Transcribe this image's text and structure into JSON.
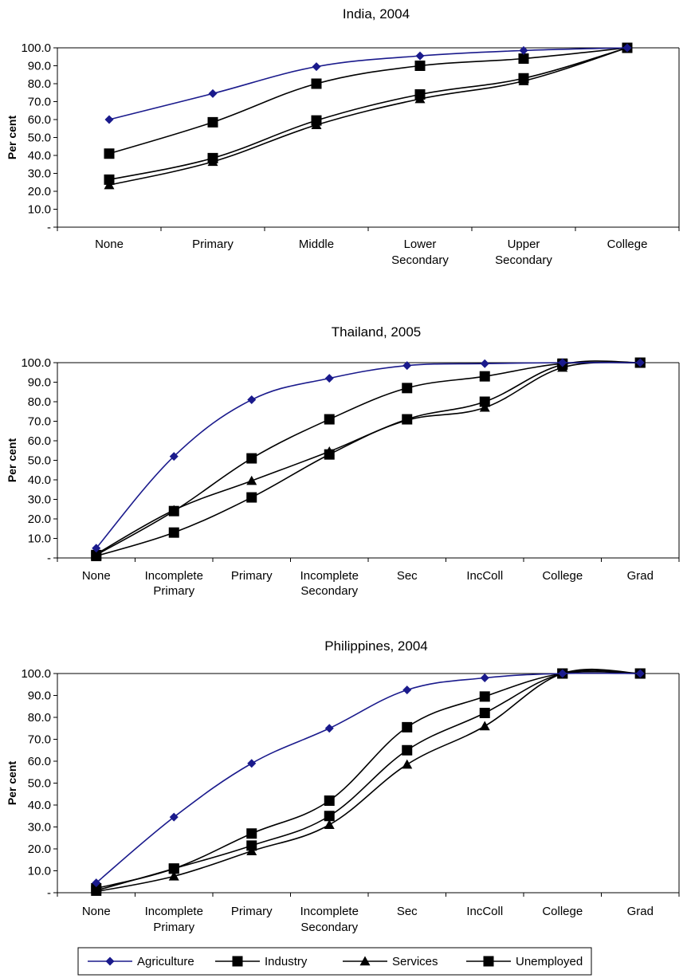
{
  "chart_data": [
    {
      "type": "line",
      "title": "India, 2004",
      "ylabel": "Per cent",
      "ylim": [
        0,
        100
      ],
      "y_ticks": [
        "-",
        "10.0",
        "20.0",
        "30.0",
        "40.0",
        "50.0",
        "60.0",
        "70.0",
        "80.0",
        "90.0",
        "100.0"
      ],
      "categories": [
        [
          "None"
        ],
        [
          "Primary"
        ],
        [
          "Middle"
        ],
        [
          "Lower",
          "Secondary"
        ],
        [
          "Upper",
          "Secondary"
        ],
        [
          "College"
        ]
      ],
      "series": [
        {
          "name": "Agriculture",
          "values": [
            60.0,
            74.5,
            89.5,
            95.5,
            98.5,
            100.0
          ]
        },
        {
          "name": "Industry",
          "values": [
            41.0,
            58.5,
            80.0,
            90.0,
            94.0,
            100.0
          ]
        },
        {
          "name": "Services",
          "values": [
            23.5,
            36.5,
            57.0,
            71.5,
            81.5,
            100.0
          ]
        },
        {
          "name": "Unemployed",
          "values": [
            26.5,
            38.5,
            59.5,
            74.0,
            83.0,
            100.0
          ]
        }
      ]
    },
    {
      "type": "line",
      "title": "Thailand, 2005",
      "ylabel": "Per cent",
      "ylim": [
        0,
        100
      ],
      "y_ticks": [
        "-",
        "10.0",
        "20.0",
        "30.0",
        "40.0",
        "50.0",
        "60.0",
        "70.0",
        "80.0",
        "90.0",
        "100.0"
      ],
      "categories": [
        [
          "None"
        ],
        [
          "Incomplete",
          "Primary"
        ],
        [
          "Primary"
        ],
        [
          "Incomplete",
          "Secondary"
        ],
        [
          "Sec"
        ],
        [
          "IncColl"
        ],
        [
          "College"
        ],
        [
          "Grad"
        ]
      ],
      "series": [
        {
          "name": "Agriculture",
          "values": [
            5.0,
            52.0,
            81.0,
            92.0,
            98.5,
            99.5,
            100.0,
            100.0
          ]
        },
        {
          "name": "Industry",
          "values": [
            1.5,
            24.0,
            51.0,
            71.0,
            87.0,
            93.0,
            99.5,
            100.0
          ]
        },
        {
          "name": "Services",
          "values": [
            2.0,
            24.5,
            39.5,
            54.5,
            70.5,
            77.0,
            97.5,
            100.0
          ]
        },
        {
          "name": "Unemployed",
          "values": [
            1.0,
            13.0,
            31.0,
            53.0,
            71.0,
            80.0,
            99.0,
            100.0
          ]
        }
      ]
    },
    {
      "type": "line",
      "title": "Philippines, 2004",
      "ylabel": "Per cent",
      "ylim": [
        0,
        100
      ],
      "y_ticks": [
        "-",
        "10.0",
        "20.0",
        "30.0",
        "40.0",
        "50.0",
        "60.0",
        "70.0",
        "80.0",
        "90.0",
        "100.0"
      ],
      "categories": [
        [
          "None"
        ],
        [
          "Incomplete",
          "Primary"
        ],
        [
          "Primary"
        ],
        [
          "Incomplete",
          "Secondary"
        ],
        [
          "Sec"
        ],
        [
          "IncColl"
        ],
        [
          "College"
        ],
        [
          "Grad"
        ]
      ],
      "series": [
        {
          "name": "Agriculture",
          "values": [
            4.5,
            34.5,
            59.0,
            75.0,
            92.5,
            98.0,
            100.0,
            100.0
          ]
        },
        {
          "name": "Industry",
          "values": [
            2.0,
            11.0,
            27.0,
            42.0,
            75.5,
            89.5,
            100.0,
            100.0
          ]
        },
        {
          "name": "Services",
          "values": [
            0.5,
            7.5,
            19.0,
            31.0,
            58.5,
            76.0,
            100.0,
            100.0
          ]
        },
        {
          "name": "Unemployed",
          "values": [
            1.0,
            11.0,
            21.5,
            35.0,
            65.0,
            82.0,
            100.0,
            100.0
          ]
        }
      ]
    }
  ],
  "legend": {
    "position": "bottom",
    "items": [
      {
        "name": "Agriculture",
        "marker": "diamond",
        "color": "#1a1a8c"
      },
      {
        "name": "Industry",
        "marker": "square",
        "color": "#000000"
      },
      {
        "name": "Services",
        "marker": "triangle",
        "color": "#000000"
      },
      {
        "name": "Unemployed",
        "marker": "square",
        "color": "#000000"
      }
    ]
  },
  "colors": {
    "agriculture": "#1a1a8c",
    "other": "#000000"
  }
}
